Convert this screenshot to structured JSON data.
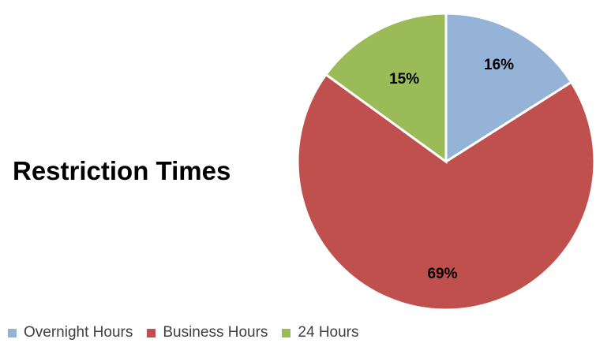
{
  "chart_data": {
    "type": "pie",
    "title": "Restriction Times",
    "categories": [
      "Overnight Hours",
      "Business Hours",
      "24 Hours"
    ],
    "values": [
      16,
      69,
      15
    ],
    "labels": [
      "16%",
      "69%",
      "15%"
    ],
    "colors": [
      "#95b3d7",
      "#c0504d",
      "#9bbb59"
    ],
    "legend": "bottom-left"
  }
}
